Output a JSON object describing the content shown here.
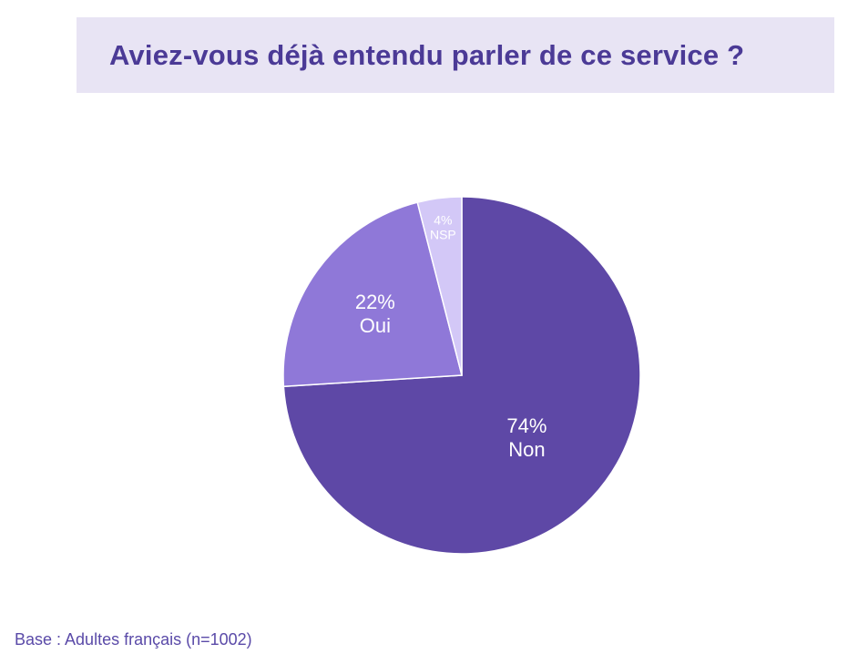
{
  "title": "Aviez-vous déjà entendu parler de ce service ?",
  "footnote": "Base : Adultes français (n=1002)",
  "colors": {
    "title_band": "#e8e4f4",
    "title_text": "#4b3a96",
    "footnote_text": "#5a4aa8",
    "label_text": "#ffffff"
  },
  "chart_data": {
    "type": "pie",
    "slices": [
      {
        "label": "Non",
        "value": 74,
        "value_label": "74%",
        "color": "#5e48a6"
      },
      {
        "label": "Oui",
        "value": 22,
        "value_label": "22%",
        "color": "#8f78d8"
      },
      {
        "label": "NSP",
        "value": 4,
        "value_label": "4%",
        "color": "#d3c8f7"
      }
    ],
    "start": "12 o'clock",
    "direction": "clockwise",
    "legend": "none",
    "labels": "inside slices"
  }
}
